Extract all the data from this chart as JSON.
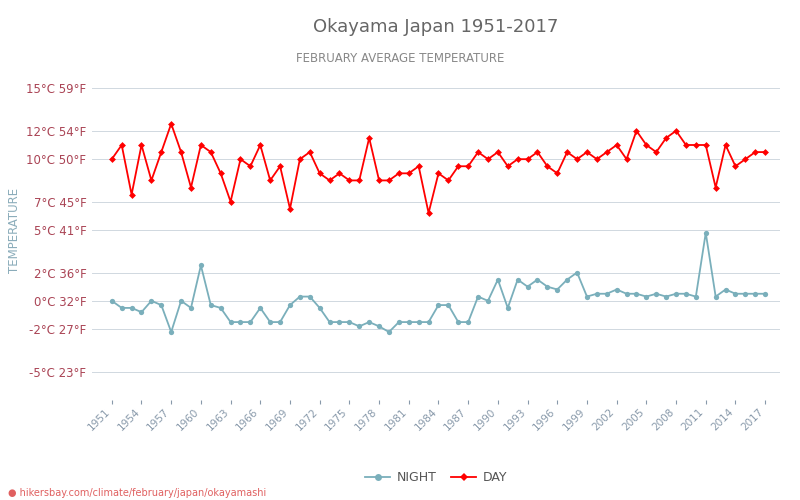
{
  "title": "Okayama Japan 1951-2017",
  "subtitle": "FEBRUARY AVERAGE TEMPERATURE",
  "ylabel": "TEMPERATURE",
  "years": [
    1951,
    1952,
    1953,
    1954,
    1955,
    1956,
    1957,
    1958,
    1959,
    1960,
    1961,
    1962,
    1963,
    1964,
    1965,
    1966,
    1967,
    1968,
    1969,
    1970,
    1971,
    1972,
    1973,
    1974,
    1975,
    1976,
    1977,
    1978,
    1979,
    1980,
    1981,
    1982,
    1983,
    1984,
    1985,
    1986,
    1987,
    1988,
    1989,
    1990,
    1991,
    1992,
    1993,
    1994,
    1995,
    1996,
    1997,
    1998,
    1999,
    2000,
    2001,
    2002,
    2003,
    2004,
    2005,
    2006,
    2007,
    2008,
    2009,
    2010,
    2011,
    2012,
    2013,
    2014,
    2015,
    2016,
    2017
  ],
  "day_temps": [
    10.0,
    11.0,
    7.5,
    11.0,
    8.5,
    10.5,
    12.5,
    10.5,
    8.0,
    11.0,
    10.5,
    9.0,
    7.0,
    10.0,
    9.5,
    11.0,
    8.5,
    9.5,
    6.5,
    10.0,
    10.5,
    9.0,
    8.5,
    9.0,
    8.5,
    8.5,
    11.5,
    8.5,
    8.5,
    9.0,
    9.0,
    9.5,
    6.2,
    9.0,
    8.5,
    9.5,
    9.5,
    10.5,
    10.0,
    10.5,
    9.5,
    10.0,
    10.0,
    10.5,
    9.5,
    9.0,
    10.5,
    10.0,
    10.5,
    10.0,
    10.5,
    11.0,
    10.0,
    12.0,
    11.0,
    10.5,
    11.5,
    12.0,
    11.0,
    11.0,
    11.0,
    8.0,
    11.0,
    9.5,
    10.0,
    10.5,
    10.5
  ],
  "night_temps": [
    0.0,
    -0.5,
    -0.5,
    -0.8,
    0.0,
    -0.3,
    -2.2,
    0.0,
    -0.5,
    2.5,
    -0.3,
    -0.5,
    -1.5,
    -1.5,
    -1.5,
    -0.5,
    -1.5,
    -1.5,
    -0.3,
    0.3,
    0.3,
    -0.5,
    -1.5,
    -1.5,
    -1.5,
    -1.8,
    -1.5,
    -1.8,
    -2.2,
    -1.5,
    -1.5,
    -1.5,
    -1.5,
    -0.3,
    -0.3,
    -1.5,
    -1.5,
    0.3,
    0.0,
    1.5,
    -0.5,
    1.5,
    1.0,
    1.5,
    1.0,
    0.8,
    1.5,
    2.0,
    0.3,
    0.5,
    0.5,
    0.8,
    0.5,
    0.5,
    0.3,
    0.5,
    0.3,
    0.5,
    0.5,
    0.3,
    4.8,
    0.3,
    0.8,
    0.5,
    0.5,
    0.5,
    0.5
  ],
  "day_color": "#ff0000",
  "night_color": "#7aafbb",
  "background_color": "#ffffff",
  "grid_color": "#d0d8e0",
  "title_color": "#666666",
  "subtitle_color": "#888888",
  "ylabel_color": "#8aacba",
  "ytick_color": "#aa4455",
  "xtick_color": "#8899aa",
  "yticks_c": [
    -5,
    -2,
    0,
    2,
    5,
    7,
    10,
    12,
    15
  ],
  "yticks_f": [
    23,
    27,
    32,
    36,
    41,
    45,
    50,
    54,
    59
  ],
  "ylim": [
    -7.0,
    17.0
  ],
  "footer": "hikersbay.com/climate/february/japan/okayamashi",
  "xtick_years": [
    1951,
    1954,
    1957,
    1960,
    1963,
    1966,
    1969,
    1972,
    1975,
    1978,
    1981,
    1984,
    1987,
    1990,
    1993,
    1996,
    1999,
    2002,
    2005,
    2008,
    2011,
    2014,
    2017
  ],
  "xlim": [
    1949.0,
    2018.5
  ]
}
